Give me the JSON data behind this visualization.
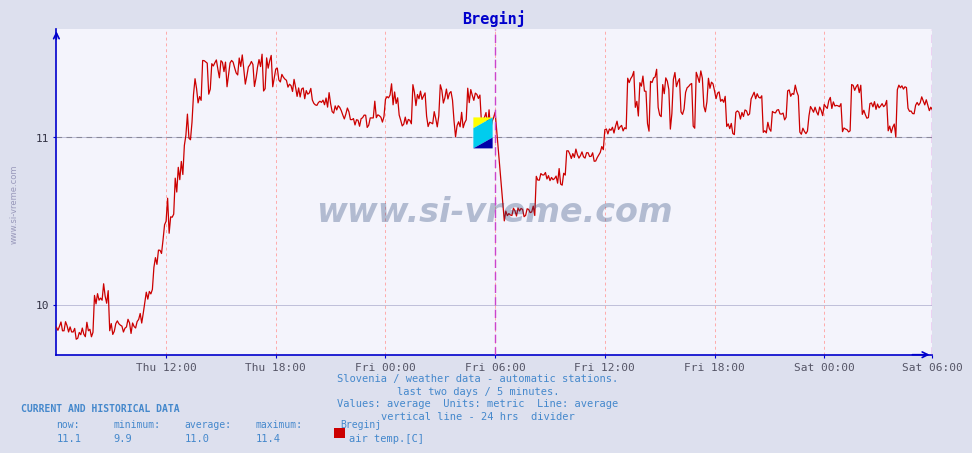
{
  "title": "Breginj",
  "title_color": "#0000cc",
  "background_color": "#dde0ee",
  "plot_background": "#f4f4fc",
  "grid_color_v": "#ffaaaa",
  "grid_color_h": "#aaaacc",
  "x_labels": [
    "Thu 12:00",
    "Thu 18:00",
    "Fri 00:00",
    "Fri 06:00",
    "Fri 12:00",
    "Fri 18:00",
    "Sat 00:00",
    "Sat 06:00"
  ],
  "x_label_color": "#555566",
  "y_ticks": [
    10,
    11
  ],
  "y_min": 9.7,
  "y_max": 11.65,
  "avg_line_y": 11.0,
  "avg_line_color": "#888899",
  "divider_color": "#cc44cc",
  "end_marker_color": "#cc44cc",
  "line_color": "#cc0000",
  "axis_color": "#0000cc",
  "watermark_text": "www.si-vreme.com",
  "watermark_color": "#1a3a6e",
  "watermark_alpha": 0.3,
  "footer_lines": [
    "Slovenia / weather data - automatic stations.",
    "last two days / 5 minutes.",
    "Values: average  Units: metric  Line: average",
    "vertical line - 24 hrs  divider"
  ],
  "footer_color": "#4488cc",
  "bottom_label_bold": "CURRENT AND HISTORICAL DATA",
  "bottom_label_color": "#4488cc",
  "bottom_headers": [
    "now:",
    "minimum:",
    "average:",
    "maximum:",
    "Breginj"
  ],
  "bottom_values": [
    "11.1",
    "9.9",
    "11.0",
    "11.4"
  ],
  "bottom_legend_label": "air temp.[C]",
  "bottom_legend_color": "#cc0000",
  "left_watermark": "www.si-vreme.com",
  "left_watermark_color": "#9999bb",
  "logo_yellow": "#ffff00",
  "logo_cyan": "#00ccee",
  "logo_blue": "#0000aa"
}
